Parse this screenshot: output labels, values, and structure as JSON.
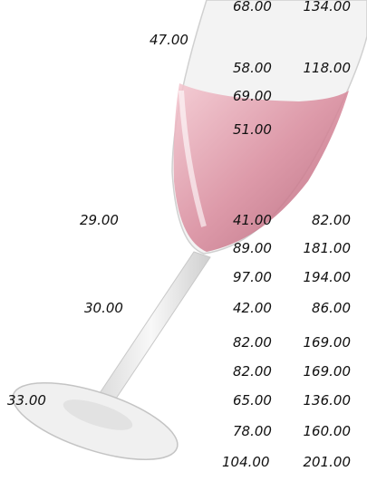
{
  "rows": [
    {
      "main": "68.00",
      "large": "134.00"
    },
    {
      "side": "47.00"
    },
    {
      "main": "58.00",
      "large": "118.00"
    },
    {
      "main": "69.00"
    },
    {
      "main": "51.00"
    },
    {
      "side": "29.00",
      "main": "41.00",
      "large": "82.00"
    },
    {
      "main": "89.00",
      "large": "181.00"
    },
    {
      "main": "97.00",
      "large": "194.00"
    },
    {
      "side": "30.00",
      "main": "42.00",
      "large": "86.00"
    },
    {
      "main": "82.00",
      "large": "169.00"
    },
    {
      "main": "82.00",
      "large": "169.00"
    },
    {
      "side": "33.00",
      "main": "65.00",
      "large": "136.00"
    },
    {
      "main": "78.00",
      "large": "160.00"
    },
    {
      "main": "104.00",
      "large": "201.00"
    }
  ]
}
